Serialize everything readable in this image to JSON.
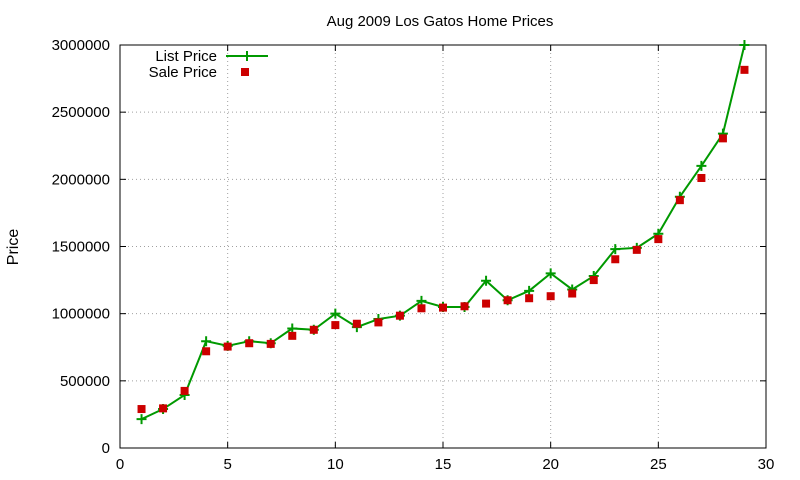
{
  "chart_data": {
    "type": "line",
    "title": "Aug 2009 Los Gatos Home Prices",
    "xlabel": "",
    "ylabel": "Price",
    "xlim": [
      0,
      30
    ],
    "ylim": [
      0,
      3000000
    ],
    "xticks": [
      0,
      5,
      10,
      15,
      20,
      25,
      30
    ],
    "yticks": [
      0,
      500000,
      1000000,
      1500000,
      2000000,
      2500000,
      3000000
    ],
    "xtick_labels": [
      "0",
      "5",
      "10",
      "15",
      "20",
      "25",
      "30"
    ],
    "ytick_labels": [
      "0",
      "500000",
      "1000000",
      "1500000",
      "2000000",
      "2500000",
      "3000000"
    ],
    "grid": true,
    "legend_position": "top-left",
    "series": [
      {
        "name": "List Price",
        "style": "line-plus",
        "color": "#009900",
        "x": [
          1,
          2,
          3,
          4,
          5,
          6,
          7,
          8,
          9,
          10,
          11,
          12,
          13,
          14,
          15,
          16,
          17,
          18,
          19,
          20,
          21,
          22,
          23,
          24,
          25,
          26,
          27,
          28,
          29
        ],
        "y": [
          215000,
          290000,
          395000,
          795000,
          760000,
          795000,
          780000,
          890000,
          880000,
          1000000,
          900000,
          960000,
          985000,
          1095000,
          1050000,
          1050000,
          1245000,
          1100000,
          1170000,
          1300000,
          1180000,
          1280000,
          1480000,
          1490000,
          1595000,
          1870000,
          2100000,
          2340000,
          3000000
        ]
      },
      {
        "name": "Sale Price",
        "style": "square-points",
        "color": "#cc0000",
        "x": [
          1,
          2,
          3,
          4,
          5,
          6,
          7,
          8,
          9,
          10,
          11,
          12,
          13,
          14,
          15,
          16,
          17,
          18,
          19,
          20,
          21,
          22,
          23,
          24,
          25,
          26,
          27,
          28,
          29
        ],
        "y": [
          290000,
          295000,
          425000,
          720000,
          755000,
          780000,
          775000,
          835000,
          880000,
          915000,
          925000,
          935000,
          985000,
          1040000,
          1045000,
          1055000,
          1075000,
          1100000,
          1115000,
          1130000,
          1150000,
          1250000,
          1405000,
          1475000,
          1555000,
          1845000,
          2010000,
          2305000,
          2815000
        ]
      }
    ]
  }
}
